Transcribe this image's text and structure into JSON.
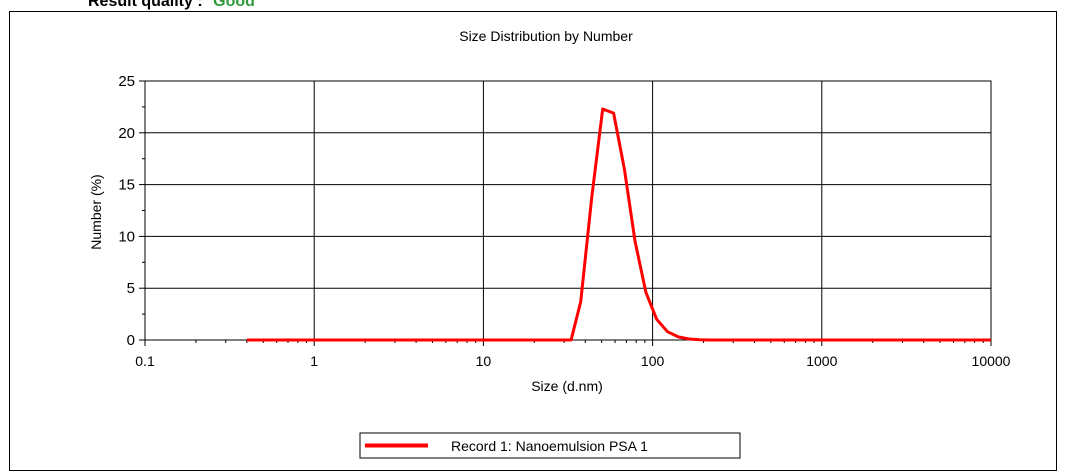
{
  "header": {
    "label": "Result quality :",
    "value": "Good",
    "value_color": "#2e9a3c"
  },
  "chart_data": {
    "type": "line",
    "title": "Size Distribution by Number",
    "xlabel": "Size (d.nm)",
    "ylabel": "Number (%)",
    "xscale": "log",
    "xlim": [
      0.1,
      10000
    ],
    "ylim": [
      0,
      25
    ],
    "xticks": [
      "0.1",
      "1",
      "10",
      "100",
      "1000",
      "10000"
    ],
    "yticks": [
      "0",
      "5",
      "10",
      "15",
      "20",
      "25"
    ],
    "grid": true,
    "legend_position": "bottom-center",
    "series": [
      {
        "name": "Record 1: Nanoemulsion PSA 1",
        "color": "#ff0000",
        "x": [
          0.4,
          1,
          3,
          10,
          30,
          33,
          37.6,
          43.8,
          50.7,
          58.8,
          68.1,
          78.8,
          91.3,
          105.7,
          122.4,
          141.8,
          164.2,
          190.1,
          220,
          300,
          1000,
          3000,
          10000
        ],
        "y": [
          0,
          0,
          0,
          0,
          0,
          0,
          3.7,
          13.9,
          22.3,
          21.9,
          16.5,
          9.5,
          4.6,
          2.0,
          0.8,
          0.3,
          0.1,
          0.02,
          0,
          0,
          0,
          0,
          0
        ]
      }
    ]
  }
}
